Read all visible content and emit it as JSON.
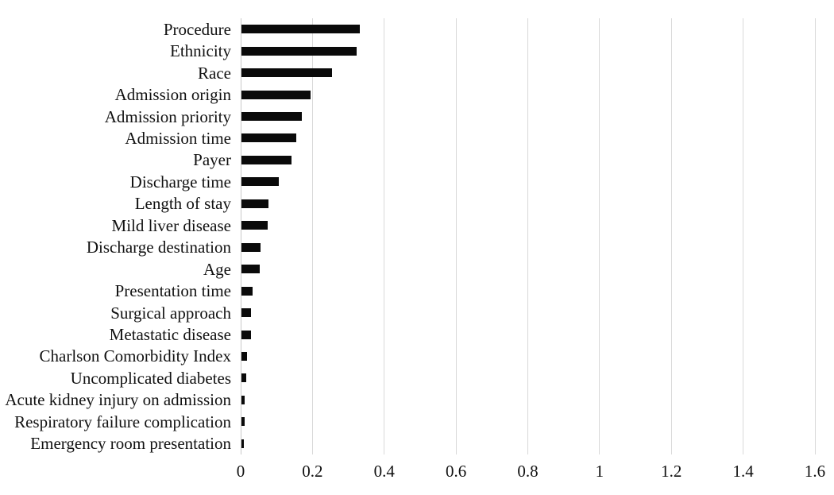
{
  "chart_data": {
    "type": "bar",
    "orientation": "horizontal",
    "title": "",
    "xlabel": "",
    "ylabel": "",
    "categories": [
      "Procedure",
      "Ethnicity",
      "Race",
      "Admission origin",
      "Admission priority",
      "Admission time",
      "Payer",
      "Discharge time",
      "Length of stay",
      "Mild liver disease",
      "Discharge destination",
      "Age",
      "Presentation time",
      "Surgical approach",
      "Metastatic disease",
      "Charlson Comorbidity Index",
      "Uncomplicated diabetes",
      "Acute kidney injury on admission",
      "Respiratory failure complication",
      "Emergency room presentation"
    ],
    "values": [
      0.33,
      0.32,
      0.253,
      0.193,
      0.168,
      0.152,
      0.14,
      0.105,
      0.076,
      0.072,
      0.054,
      0.051,
      0.032,
      0.026,
      0.026,
      0.015,
      0.013,
      0.008,
      0.008,
      0.006
    ],
    "xlim": [
      0,
      1.6
    ],
    "x_ticks": [
      0,
      0.2,
      0.4,
      0.6,
      0.8,
      1,
      1.2,
      1.4,
      1.6
    ],
    "x_tick_labels": [
      "0",
      "0.2",
      "0.4",
      "0.6",
      "0.8",
      "1",
      "1.2",
      "1.4",
      "1.6"
    ],
    "grid": true,
    "legend": false,
    "colors": {
      "bar": "#0a0a0a",
      "gridline": "#d9d9d9",
      "text": "#111111",
      "background": "#ffffff"
    }
  }
}
